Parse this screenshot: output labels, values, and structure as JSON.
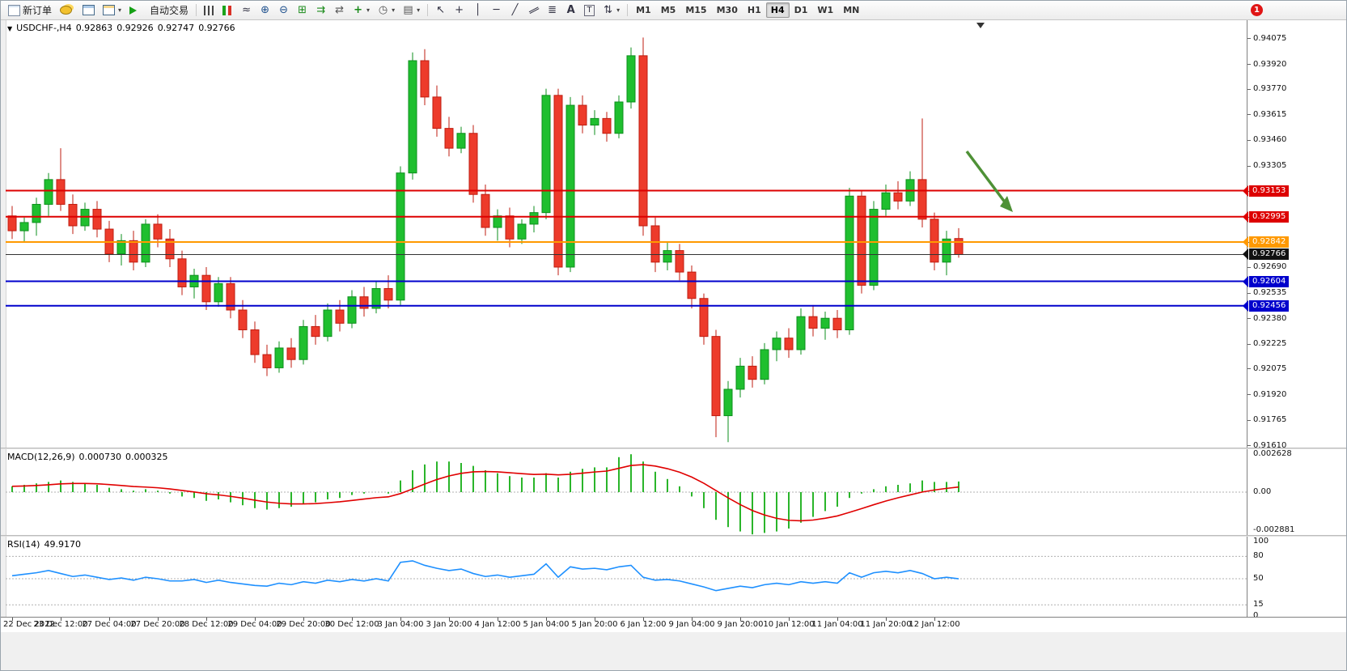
{
  "window": {
    "notification_count": "1"
  },
  "toolbar": {
    "buttons_left": [
      {
        "name": "new-order-button",
        "icon": "doc-icon",
        "label": "新订单"
      },
      {
        "name": "deposit-button",
        "icon": "coins-icon"
      },
      {
        "name": "market-watch-button",
        "icon": "window-icon"
      },
      {
        "name": "new-chart-button",
        "icon": "window2-icon",
        "caret": true
      },
      {
        "name": "auto-trading-button",
        "icon": "play-icon",
        "label": "自动交易"
      }
    ],
    "chart_tools": [
      {
        "name": "bar-chart-button",
        "icon": "bars-icon"
      },
      {
        "name": "candlestick-chart-button",
        "icon": "candles-icon"
      },
      {
        "name": "line-chart-button",
        "icon": "linechart-icon"
      },
      {
        "name": "zoom-in-button",
        "icon": "zoom-in-icon"
      },
      {
        "name": "zoom-out-button",
        "icon": "zoom-out-icon"
      },
      {
        "name": "tile-windows-button",
        "icon": "grid-icon"
      },
      {
        "name": "auto-scroll-button",
        "icon": "autoscroll-icon"
      },
      {
        "name": "chart-shift-button",
        "icon": "shift-icon"
      },
      {
        "name": "indicators-button",
        "icon": "indicators-icon",
        "caret": true
      },
      {
        "name": "periods-button",
        "icon": "clock-icon",
        "caret": true
      },
      {
        "name": "templates-button",
        "icon": "template-icon",
        "caret": true
      }
    ],
    "draw_tools": [
      {
        "name": "cursor-button",
        "icon": "cursor-icon"
      },
      {
        "name": "crosshair-button",
        "icon": "crosshair-icon"
      },
      {
        "name": "vertical-line-button",
        "icon": "vline-icon"
      },
      {
        "name": "horizontal-line-button",
        "icon": "hline-icon"
      },
      {
        "name": "trendline-button",
        "icon": "trendline-icon"
      },
      {
        "name": "channel-button",
        "icon": "channel-icon"
      },
      {
        "name": "fibonacci-button",
        "icon": "fibo-icon"
      },
      {
        "name": "text-button",
        "icon": "text-icon"
      },
      {
        "name": "label-button",
        "icon": "label-icon"
      },
      {
        "name": "arrows-button",
        "icon": "arrows-icon",
        "caret": true
      }
    ],
    "timeframes": [
      "M1",
      "M5",
      "M15",
      "M30",
      "H1",
      "H4",
      "D1",
      "W1",
      "MN"
    ],
    "active_timeframe": "H4"
  },
  "chart": {
    "symbol_period": "USDCHF-,H4",
    "open": "0.92863",
    "high": "0.92926",
    "low": "0.92747",
    "close": "0.92766"
  },
  "price_axis": {
    "ticks": [
      "0.94075",
      "0.93920",
      "0.93770",
      "0.93615",
      "0.93460",
      "0.93305",
      "0.93150",
      "0.92995",
      "0.92840",
      "0.92690",
      "0.92535",
      "0.92380",
      "0.92225",
      "0.92075",
      "0.91920",
      "0.91765",
      "0.91610"
    ]
  },
  "levels": [
    {
      "price": 0.93153,
      "label": "0.93153",
      "color": "#dd0000"
    },
    {
      "price": 0.92995,
      "label": "0.92995",
      "color": "#dd0000"
    },
    {
      "price": 0.92842,
      "label": "0.92842",
      "color": "#ff9900"
    },
    {
      "price": 0.92604,
      "label": "0.92604",
      "color": "#0000cc"
    },
    {
      "price": 0.92456,
      "label": "0.92456",
      "color": "#0000cc"
    }
  ],
  "current_price_tag": {
    "price": 0.92766,
    "label": "0.92766",
    "color": "#111111"
  },
  "macd_panel": {
    "title": "MACD(12,26,9)",
    "value": "0.000730",
    "signal_value": "0.000325",
    "axis_labels": [
      "0.002628",
      "0.00",
      "-0.002881"
    ]
  },
  "rsi_panel": {
    "title": "RSI(14)",
    "value": "49.9170",
    "axis_labels": [
      "100",
      "80",
      "50",
      "15",
      "0"
    ],
    "level_lines": [
      80,
      50,
      15
    ]
  },
  "time_axis": {
    "labels": [
      "22 Dec 2022",
      "23 Dec 12:00",
      "27 Dec 04:00",
      "27 Dec 20:00",
      "28 Dec 12:00",
      "29 Dec 04:00",
      "29 Dec 20:00",
      "30 Dec 12:00",
      "3 Jan 04:00",
      "3 Jan 20:00",
      "4 Jan 12:00",
      "5 Jan 04:00",
      "5 Jan 20:00",
      "6 Jan 12:00",
      "9 Jan 04:00",
      "9 Jan 20:00",
      "10 Jan 12:00",
      "11 Jan 04:00",
      "11 Jan 20:00",
      "12 Jan 12:00"
    ]
  },
  "colors": {
    "bull": "#1fbf2f",
    "bull_edge": "#0d8f1d",
    "bear": "#ed3b2b",
    "bear_edge": "#bf1d10",
    "macd_histogram": "#2ab52a",
    "macd_signal": "#e00000",
    "rsi_line": "#1e90ff",
    "arrow": "#4e9136"
  },
  "chart_data": {
    "type": "candlestick",
    "symbol": "USDCHF",
    "period": "H4",
    "y_axis_range": [
      0.9161,
      0.94075
    ],
    "candles_ohlc": [
      [
        0.93,
        0.9306,
        0.9286,
        0.9291
      ],
      [
        0.9291,
        0.9299,
        0.9284,
        0.9296
      ],
      [
        0.9296,
        0.9311,
        0.9288,
        0.9307
      ],
      [
        0.9307,
        0.9326,
        0.93,
        0.9322
      ],
      [
        0.9322,
        0.9341,
        0.9303,
        0.9307
      ],
      [
        0.9307,
        0.9313,
        0.9289,
        0.9294
      ],
      [
        0.9294,
        0.9308,
        0.9291,
        0.9304
      ],
      [
        0.9304,
        0.9309,
        0.9287,
        0.9292
      ],
      [
        0.9292,
        0.9297,
        0.9272,
        0.9277
      ],
      [
        0.9277,
        0.9289,
        0.927,
        0.9285
      ],
      [
        0.9285,
        0.9291,
        0.9267,
        0.9272
      ],
      [
        0.9272,
        0.9298,
        0.9269,
        0.9295
      ],
      [
        0.9295,
        0.9301,
        0.9281,
        0.9286
      ],
      [
        0.9286,
        0.9292,
        0.9269,
        0.9274
      ],
      [
        0.9274,
        0.9279,
        0.9252,
        0.9257
      ],
      [
        0.9257,
        0.9268,
        0.925,
        0.9264
      ],
      [
        0.9264,
        0.9269,
        0.9243,
        0.9248
      ],
      [
        0.9248,
        0.9263,
        0.9245,
        0.9259
      ],
      [
        0.9259,
        0.9263,
        0.9238,
        0.9243
      ],
      [
        0.9243,
        0.9249,
        0.9226,
        0.9231
      ],
      [
        0.9231,
        0.9236,
        0.9211,
        0.9216
      ],
      [
        0.9216,
        0.9222,
        0.9203,
        0.9208
      ],
      [
        0.9208,
        0.9224,
        0.9205,
        0.922
      ],
      [
        0.922,
        0.9226,
        0.9208,
        0.9213
      ],
      [
        0.9213,
        0.9237,
        0.921,
        0.9233
      ],
      [
        0.9233,
        0.924,
        0.9222,
        0.9227
      ],
      [
        0.9227,
        0.9247,
        0.9224,
        0.9243
      ],
      [
        0.9243,
        0.9249,
        0.923,
        0.9235
      ],
      [
        0.9235,
        0.9255,
        0.9232,
        0.9251
      ],
      [
        0.9251,
        0.9257,
        0.9239,
        0.9244
      ],
      [
        0.9244,
        0.926,
        0.9241,
        0.9256
      ],
      [
        0.9256,
        0.9264,
        0.9244,
        0.9249
      ],
      [
        0.9249,
        0.933,
        0.9246,
        0.9326
      ],
      [
        0.9326,
        0.9399,
        0.9322,
        0.9394
      ],
      [
        0.9394,
        0.9401,
        0.9367,
        0.9372
      ],
      [
        0.9372,
        0.9379,
        0.9348,
        0.9353
      ],
      [
        0.9353,
        0.936,
        0.9336,
        0.9341
      ],
      [
        0.9341,
        0.9354,
        0.9338,
        0.935
      ],
      [
        0.935,
        0.9355,
        0.9308,
        0.9313
      ],
      [
        0.9313,
        0.9319,
        0.9288,
        0.9293
      ],
      [
        0.9293,
        0.9304,
        0.9285,
        0.93
      ],
      [
        0.93,
        0.9305,
        0.9281,
        0.9286
      ],
      [
        0.9286,
        0.9298,
        0.9283,
        0.9295
      ],
      [
        0.9295,
        0.9306,
        0.929,
        0.9302
      ],
      [
        0.9302,
        0.9377,
        0.9298,
        0.9373
      ],
      [
        0.9373,
        0.9377,
        0.9264,
        0.9269
      ],
      [
        0.9269,
        0.9372,
        0.9266,
        0.9367
      ],
      [
        0.9367,
        0.9373,
        0.935,
        0.9355
      ],
      [
        0.9355,
        0.9364,
        0.9349,
        0.9359
      ],
      [
        0.9359,
        0.9363,
        0.9345,
        0.935
      ],
      [
        0.935,
        0.9373,
        0.9347,
        0.9369
      ],
      [
        0.9369,
        0.9402,
        0.9365,
        0.9397
      ],
      [
        0.9397,
        0.9408,
        0.9288,
        0.9294
      ],
      [
        0.9294,
        0.9299,
        0.9266,
        0.9272
      ],
      [
        0.9272,
        0.9284,
        0.9267,
        0.9279
      ],
      [
        0.9279,
        0.9283,
        0.9261,
        0.9266
      ],
      [
        0.9266,
        0.927,
        0.9244,
        0.925
      ],
      [
        0.925,
        0.9253,
        0.9222,
        0.9227
      ],
      [
        0.9227,
        0.9231,
        0.9166,
        0.9179
      ],
      [
        0.9179,
        0.92,
        0.9163,
        0.9195
      ],
      [
        0.9195,
        0.9214,
        0.919,
        0.9209
      ],
      [
        0.9209,
        0.9215,
        0.9196,
        0.9201
      ],
      [
        0.9201,
        0.9223,
        0.9198,
        0.9219
      ],
      [
        0.9219,
        0.923,
        0.9212,
        0.9226
      ],
      [
        0.9226,
        0.9232,
        0.9214,
        0.9219
      ],
      [
        0.9219,
        0.9244,
        0.9216,
        0.9239
      ],
      [
        0.9239,
        0.9246,
        0.9227,
        0.9232
      ],
      [
        0.9232,
        0.9242,
        0.9225,
        0.9238
      ],
      [
        0.9238,
        0.9243,
        0.9226,
        0.9231
      ],
      [
        0.9231,
        0.9317,
        0.9228,
        0.9312
      ],
      [
        0.9312,
        0.9315,
        0.9253,
        0.9258
      ],
      [
        0.9258,
        0.9309,
        0.9255,
        0.9304
      ],
      [
        0.9304,
        0.9319,
        0.93,
        0.9314
      ],
      [
        0.9314,
        0.9321,
        0.9304,
        0.9309
      ],
      [
        0.9309,
        0.9327,
        0.9306,
        0.9322
      ],
      [
        0.9322,
        0.9359,
        0.9293,
        0.9298
      ],
      [
        0.9298,
        0.9302,
        0.9267,
        0.9272
      ],
      [
        0.9272,
        0.9291,
        0.9264,
        0.9286
      ],
      [
        0.92863,
        0.92926,
        0.92747,
        0.92766
      ]
    ],
    "overlays": {
      "horizontal_lines": [
        0.93153,
        0.92995,
        0.92842,
        0.92604,
        0.92456
      ],
      "current_price": 0.92766,
      "arrow_annotation": {
        "color": "green",
        "direction": "down-right"
      }
    },
    "indicators": [
      {
        "type": "bar",
        "name": "MACD(12,26,9)",
        "last_value": 0.00073,
        "last_signal": 0.000325,
        "axis_range": [
          -0.002881,
          0.002628
        ],
        "signal_ema_period": 9,
        "histogram": [
          0.0004,
          0.0005,
          0.0006,
          0.0007,
          0.0008,
          0.0007,
          0.0006,
          0.0005,
          0.0003,
          0.0002,
          0.0001,
          0.0002,
          0.0001,
          -0.0001,
          -0.0003,
          -0.0004,
          -0.0006,
          -0.0005,
          -0.0007,
          -0.0009,
          -0.0011,
          -0.0012,
          -0.0011,
          -0.001,
          -0.0008,
          -0.0007,
          -0.0005,
          -0.0004,
          -0.0002,
          -0.0001,
          0.0,
          -0.0001,
          0.0008,
          0.0015,
          0.0019,
          0.0021,
          0.0021,
          0.002,
          0.0018,
          0.0015,
          0.0013,
          0.0011,
          0.001,
          0.001,
          0.0013,
          0.001,
          0.0014,
          0.0016,
          0.0017,
          0.0017,
          0.0024,
          0.0026,
          0.0021,
          0.0014,
          0.0009,
          0.0004,
          -0.0003,
          -0.0011,
          -0.0019,
          -0.0024,
          -0.0027,
          -0.0029,
          -0.0028,
          -0.0027,
          -0.0025,
          -0.0021,
          -0.0017,
          -0.0013,
          -0.001,
          -0.0004,
          -0.0001,
          0.0002,
          0.0004,
          0.0005,
          0.0006,
          0.0008,
          0.0007,
          0.0007,
          0.00073
        ]
      },
      {
        "type": "line",
        "name": "RSI(14)",
        "last_value": 49.917,
        "axis_range": [
          0,
          100
        ],
        "levels": [
          15,
          50,
          80
        ],
        "values": [
          54,
          56,
          58,
          61,
          57,
          53,
          55,
          52,
          49,
          51,
          48,
          52,
          50,
          47,
          47,
          49,
          45,
          48,
          45,
          43,
          41,
          40,
          44,
          42,
          46,
          44,
          48,
          46,
          49,
          47,
          50,
          47,
          72,
          74,
          68,
          64,
          61,
          63,
          57,
          53,
          55,
          52,
          54,
          56,
          70,
          52,
          66,
          63,
          64,
          62,
          66,
          68,
          52,
          48,
          49,
          47,
          43,
          39,
          34,
          37,
          40,
          38,
          42,
          44,
          42,
          46,
          44,
          46,
          44,
          58,
          52,
          58,
          60,
          58,
          61,
          57,
          50,
          52,
          49.92
        ]
      }
    ]
  }
}
